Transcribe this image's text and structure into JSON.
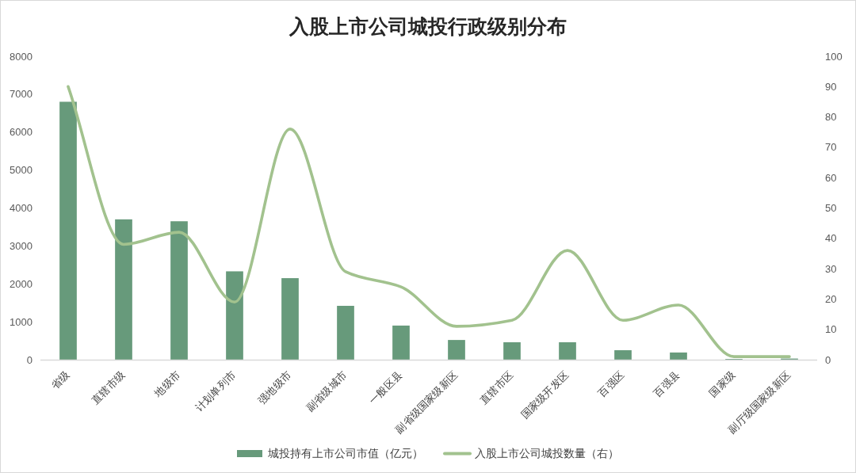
{
  "chart_data": {
    "type": "bar",
    "title": "入股上市公司城投行政级别分布",
    "categories": [
      "省级",
      "直辖市级",
      "地级市",
      "计划单列市",
      "强地级市",
      "副省级城市",
      "一般区县",
      "副省级国家级新区",
      "直辖市区",
      "国家级开发区",
      "百强区",
      "百强县",
      "国家级",
      "副厅级国家级新区"
    ],
    "series": [
      {
        "name": "城投持有上市公司市值（亿元）",
        "color": "#679a7b",
        "values": [
          6800,
          3700,
          3650,
          2330,
          2150,
          1420,
          900,
          520,
          460,
          460,
          250,
          190,
          20,
          30
        ]
      },
      {
        "name": "入股上市公司城投数量（右）",
        "type": "line",
        "axis": "y2",
        "color": "#a2c28e",
        "values": [
          90,
          38,
          42,
          19,
          76,
          29,
          24,
          11,
          13,
          36,
          13,
          18,
          1,
          1
        ]
      }
    ],
    "ylim": [
      0,
      8000
    ],
    "yticks": [
      0,
      1000,
      2000,
      3000,
      4000,
      5000,
      6000,
      7000,
      8000
    ],
    "y2lim": [
      0,
      100
    ],
    "y2ticks": [
      0,
      10,
      20,
      30,
      40,
      50,
      60,
      70,
      80,
      90,
      100
    ],
    "legend": "bottom"
  }
}
